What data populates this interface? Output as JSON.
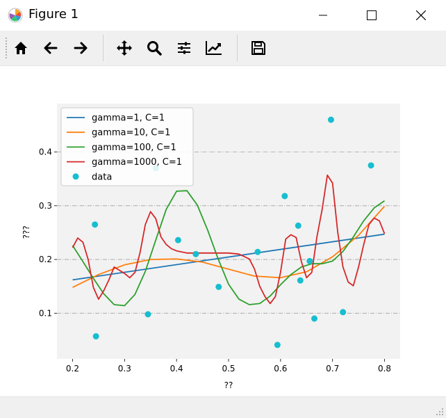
{
  "window": {
    "title": "Figure 1",
    "minimize_icon": "minimize-icon",
    "maximize_icon": "maximize-icon",
    "close_icon": "close-icon"
  },
  "toolbar": {
    "buttons": [
      {
        "name": "home-button",
        "icon": "home-icon"
      },
      {
        "name": "back-button",
        "icon": "arrow-left-icon"
      },
      {
        "name": "forward-button",
        "icon": "arrow-right-icon"
      },
      {
        "name": "pan-button",
        "icon": "move-icon"
      },
      {
        "name": "zoom-button",
        "icon": "magnifier-icon"
      },
      {
        "name": "configure-subplots-button",
        "icon": "sliders-icon"
      },
      {
        "name": "edit-axis-button",
        "icon": "line-chart-icon"
      },
      {
        "name": "save-button",
        "icon": "floppy-disk-icon"
      }
    ]
  },
  "chart_data": {
    "type": "line",
    "title": "",
    "xlabel": "??",
    "ylabel": "???",
    "xlim": [
      0.17,
      0.83
    ],
    "ylim": [
      0.015,
      0.49
    ],
    "xticks": [
      "0.2",
      "0.3",
      "0.4",
      "0.5",
      "0.6",
      "0.7",
      "0.8"
    ],
    "yticks": [
      "0.1",
      "0.2",
      "0.3",
      "0.4"
    ],
    "grid": "horizontal dash-dot",
    "legend_position": "top-left",
    "series": [
      {
        "name": "gamma=1, C=1",
        "color": "#1f77b4",
        "x": [
          0.2,
          0.8
        ],
        "y": [
          0.162,
          0.247
        ]
      },
      {
        "name": "gamma=10, C=1",
        "color": "#ff7f0e",
        "x": [
          0.2,
          0.25,
          0.3,
          0.35,
          0.4,
          0.45,
          0.5,
          0.55,
          0.6,
          0.65,
          0.7,
          0.75,
          0.8
        ],
        "y": [
          0.148,
          0.172,
          0.19,
          0.2,
          0.201,
          0.195,
          0.182,
          0.169,
          0.166,
          0.177,
          0.205,
          0.245,
          0.299
        ]
      },
      {
        "name": "gamma=100, C=1",
        "color": "#2ca02c",
        "x": [
          0.2,
          0.22,
          0.24,
          0.26,
          0.28,
          0.3,
          0.32,
          0.34,
          0.36,
          0.38,
          0.4,
          0.42,
          0.44,
          0.46,
          0.48,
          0.5,
          0.52,
          0.54,
          0.56,
          0.58,
          0.6,
          0.62,
          0.64,
          0.66,
          0.68,
          0.7,
          0.72,
          0.74,
          0.76,
          0.78,
          0.8
        ],
        "y": [
          0.226,
          0.196,
          0.165,
          0.136,
          0.116,
          0.114,
          0.135,
          0.178,
          0.236,
          0.293,
          0.327,
          0.328,
          0.301,
          0.254,
          0.201,
          0.154,
          0.126,
          0.116,
          0.118,
          0.132,
          0.153,
          0.172,
          0.186,
          0.192,
          0.192,
          0.197,
          0.215,
          0.242,
          0.272,
          0.296,
          0.309
        ]
      },
      {
        "name": "gamma=1000, C=1",
        "color": "#d62728",
        "x": [
          0.2,
          0.21,
          0.22,
          0.23,
          0.24,
          0.25,
          0.26,
          0.27,
          0.28,
          0.29,
          0.3,
          0.31,
          0.32,
          0.33,
          0.34,
          0.35,
          0.36,
          0.37,
          0.38,
          0.39,
          0.4,
          0.42,
          0.44,
          0.46,
          0.48,
          0.5,
          0.52,
          0.54,
          0.55,
          0.56,
          0.57,
          0.58,
          0.59,
          0.6,
          0.61,
          0.62,
          0.63,
          0.64,
          0.65,
          0.66,
          0.67,
          0.68,
          0.69,
          0.7,
          0.71,
          0.72,
          0.73,
          0.74,
          0.75,
          0.76,
          0.77,
          0.78,
          0.79,
          0.8
        ],
        "y": [
          0.222,
          0.24,
          0.232,
          0.2,
          0.148,
          0.126,
          0.142,
          0.162,
          0.186,
          0.18,
          0.174,
          0.166,
          0.176,
          0.214,
          0.265,
          0.289,
          0.276,
          0.242,
          0.228,
          0.22,
          0.216,
          0.212,
          0.212,
          0.212,
          0.212,
          0.212,
          0.21,
          0.201,
          0.182,
          0.15,
          0.131,
          0.118,
          0.131,
          0.176,
          0.238,
          0.246,
          0.241,
          0.196,
          0.166,
          0.176,
          0.242,
          0.293,
          0.357,
          0.342,
          0.25,
          0.186,
          0.158,
          0.151,
          0.186,
          0.228,
          0.265,
          0.277,
          0.272,
          0.248
        ]
      }
    ],
    "scatter": {
      "name": "data",
      "color": "#17becf",
      "points": [
        {
          "x": 0.243,
          "y": 0.265
        },
        {
          "x": 0.245,
          "y": 0.057
        },
        {
          "x": 0.345,
          "y": 0.098
        },
        {
          "x": 0.36,
          "y": 0.37
        },
        {
          "x": 0.403,
          "y": 0.236
        },
        {
          "x": 0.437,
          "y": 0.21
        },
        {
          "x": 0.481,
          "y": 0.149
        },
        {
          "x": 0.556,
          "y": 0.214
        },
        {
          "x": 0.594,
          "y": 0.041
        },
        {
          "x": 0.608,
          "y": 0.318
        },
        {
          "x": 0.634,
          "y": 0.263
        },
        {
          "x": 0.638,
          "y": 0.161
        },
        {
          "x": 0.656,
          "y": 0.197
        },
        {
          "x": 0.665,
          "y": 0.09
        },
        {
          "x": 0.697,
          "y": 0.46
        },
        {
          "x": 0.72,
          "y": 0.102
        },
        {
          "x": 0.774,
          "y": 0.375
        }
      ]
    }
  }
}
